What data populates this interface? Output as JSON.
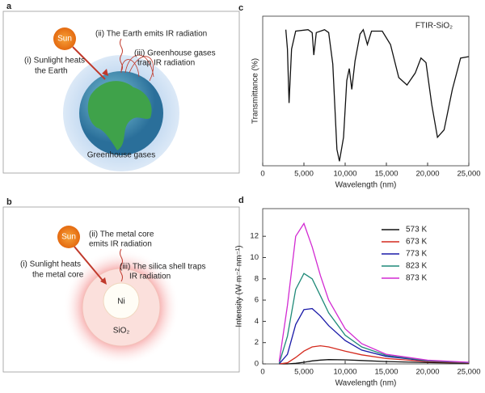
{
  "figure": {
    "panel_a": {
      "label": "a",
      "sun": "Sun",
      "emit": [
        "(ii) The Earth emits IR radiation"
      ],
      "heat": [
        "(i) Sunlight heats",
        "the Earth"
      ],
      "trap": [
        "(iii) Greenhouse gases",
        "trap IR radiation"
      ],
      "caption": "Greenhouse gases"
    },
    "panel_b": {
      "label": "b",
      "sun": "Sun",
      "emit": [
        "(ii) The metal core",
        "emits IR radiation"
      ],
      "heat": [
        "(i) Sunlight heats",
        "the metal core"
      ],
      "trap": [
        "(iii) The silica shell traps",
        "IR radiation"
      ],
      "core": "Ni",
      "shell": "SiO₂"
    }
  },
  "chart_data": [
    {
      "type": "line",
      "label": "c",
      "xlabel": "Wavelength (nm)",
      "ylabel": "Transmittance (%)",
      "xlim": [
        0,
        25000
      ],
      "xticks": [
        0,
        {
          "value": 5000,
          "label": "5,000"
        },
        {
          "value": 10000,
          "label": "10,000"
        },
        {
          "value": 15000,
          "label": "15,000"
        },
        {
          "value": 20000,
          "label": "20,000"
        },
        {
          "value": 25000,
          "label": "25,000"
        }
      ],
      "ylim": [
        0,
        100
      ],
      "x": [
        2800,
        3000,
        3200,
        3500,
        4000,
        5500,
        6000,
        6200,
        6500,
        7500,
        8000,
        8500,
        9000,
        9300,
        9800,
        10200,
        10500,
        10800,
        11200,
        11800,
        12200,
        12700,
        13200,
        14500,
        15500,
        16500,
        17500,
        18500,
        19200,
        19800,
        20500,
        21200,
        22000,
        23000,
        24000,
        25000
      ],
      "series": [
        {
          "name": "FTIR-SiO₂",
          "color": "#111111",
          "values": [
            91,
            78,
            42,
            78,
            90,
            91,
            89,
            74,
            89,
            91,
            89,
            68,
            11,
            3,
            19,
            57,
            65,
            51,
            70,
            88,
            91,
            81,
            90,
            90,
            81,
            59,
            54,
            62,
            72,
            69,
            41,
            19,
            24,
            51,
            72,
            73
          ]
        }
      ]
    },
    {
      "type": "line",
      "label": "d",
      "xlabel": "Wavelength (nm)",
      "ylabel": "Intensity (W m⁻² nm⁻¹)",
      "xlim": [
        0,
        25000
      ],
      "xticks": [
        0,
        {
          "value": 5000,
          "label": "5,000"
        },
        {
          "value": 10000,
          "label": "10,000"
        },
        {
          "value": 15000,
          "label": "15,000"
        },
        {
          "value": 20000,
          "label": "20,000"
        },
        {
          "value": 25000,
          "label": "25,000"
        }
      ],
      "ylim": [
        0,
        14.6
      ],
      "yticks": [
        0,
        2,
        4,
        6,
        8,
        10,
        12
      ],
      "x": [
        2000,
        3000,
        4000,
        5000,
        6000,
        7000,
        8000,
        10000,
        12000,
        15000,
        20000,
        25000
      ],
      "series": [
        {
          "name": "573 K",
          "color": "#111111",
          "values": [
            0,
            0,
            0.05,
            0.15,
            0.28,
            0.36,
            0.4,
            0.38,
            0.32,
            0.22,
            0.12,
            0.06
          ]
        },
        {
          "name": "673 K",
          "color": "#d42a1e",
          "values": [
            0,
            0.1,
            0.6,
            1.2,
            1.6,
            1.7,
            1.6,
            1.2,
            0.85,
            0.5,
            0.22,
            0.1
          ]
        },
        {
          "name": "773 K",
          "color": "#1a1aa8",
          "values": [
            0.01,
            0.9,
            3.7,
            5.1,
            5.2,
            4.5,
            3.6,
            2.2,
            1.3,
            0.7,
            0.28,
            0.12
          ]
        },
        {
          "name": "823 K",
          "color": "#1f8a78",
          "values": [
            0.05,
            2.6,
            7.0,
            8.5,
            8.0,
            6.4,
            4.8,
            2.7,
            1.6,
            0.8,
            0.3,
            0.13
          ]
        },
        {
          "name": "873 K",
          "color": "#d22ad2",
          "values": [
            0.2,
            5.5,
            12.0,
            13.2,
            11.0,
            8.3,
            6.0,
            3.3,
            1.9,
            0.9,
            0.35,
            0.15
          ]
        }
      ]
    }
  ]
}
